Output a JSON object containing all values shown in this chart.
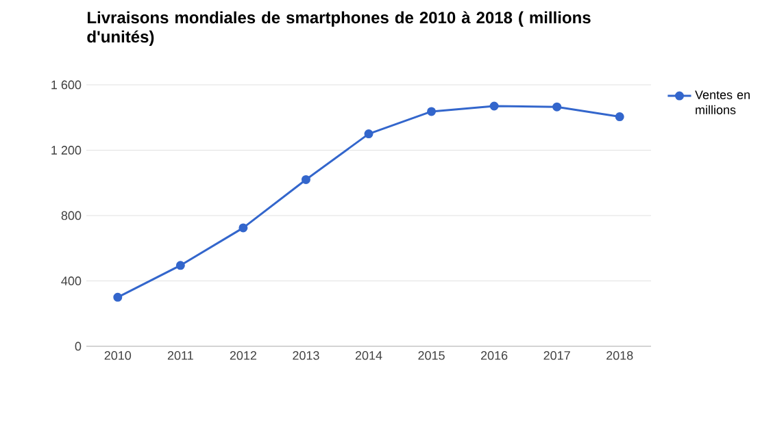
{
  "chart_data": {
    "type": "line",
    "title": "Livraisons mondiales de smartphones de 2010 à 2018 ( millions d'unités)",
    "categories": [
      "2010",
      "2011",
      "2012",
      "2013",
      "2014",
      "2015",
      "2016",
      "2017",
      "2018"
    ],
    "series": [
      {
        "name": "Ventes en millions",
        "color": "#3366cc",
        "values": [
          300,
          495,
          725,
          1020,
          1300,
          1437,
          1470,
          1465,
          1405
        ]
      }
    ],
    "ylim": [
      0,
      1600
    ],
    "yticks": [
      0,
      400,
      800,
      {
        "value": 1200,
        "label": "1 200"
      },
      {
        "value": 1600,
        "label": "1 600"
      }
    ],
    "grid": "y",
    "legend": "right",
    "marker": "circle",
    "line_style": "solid"
  }
}
